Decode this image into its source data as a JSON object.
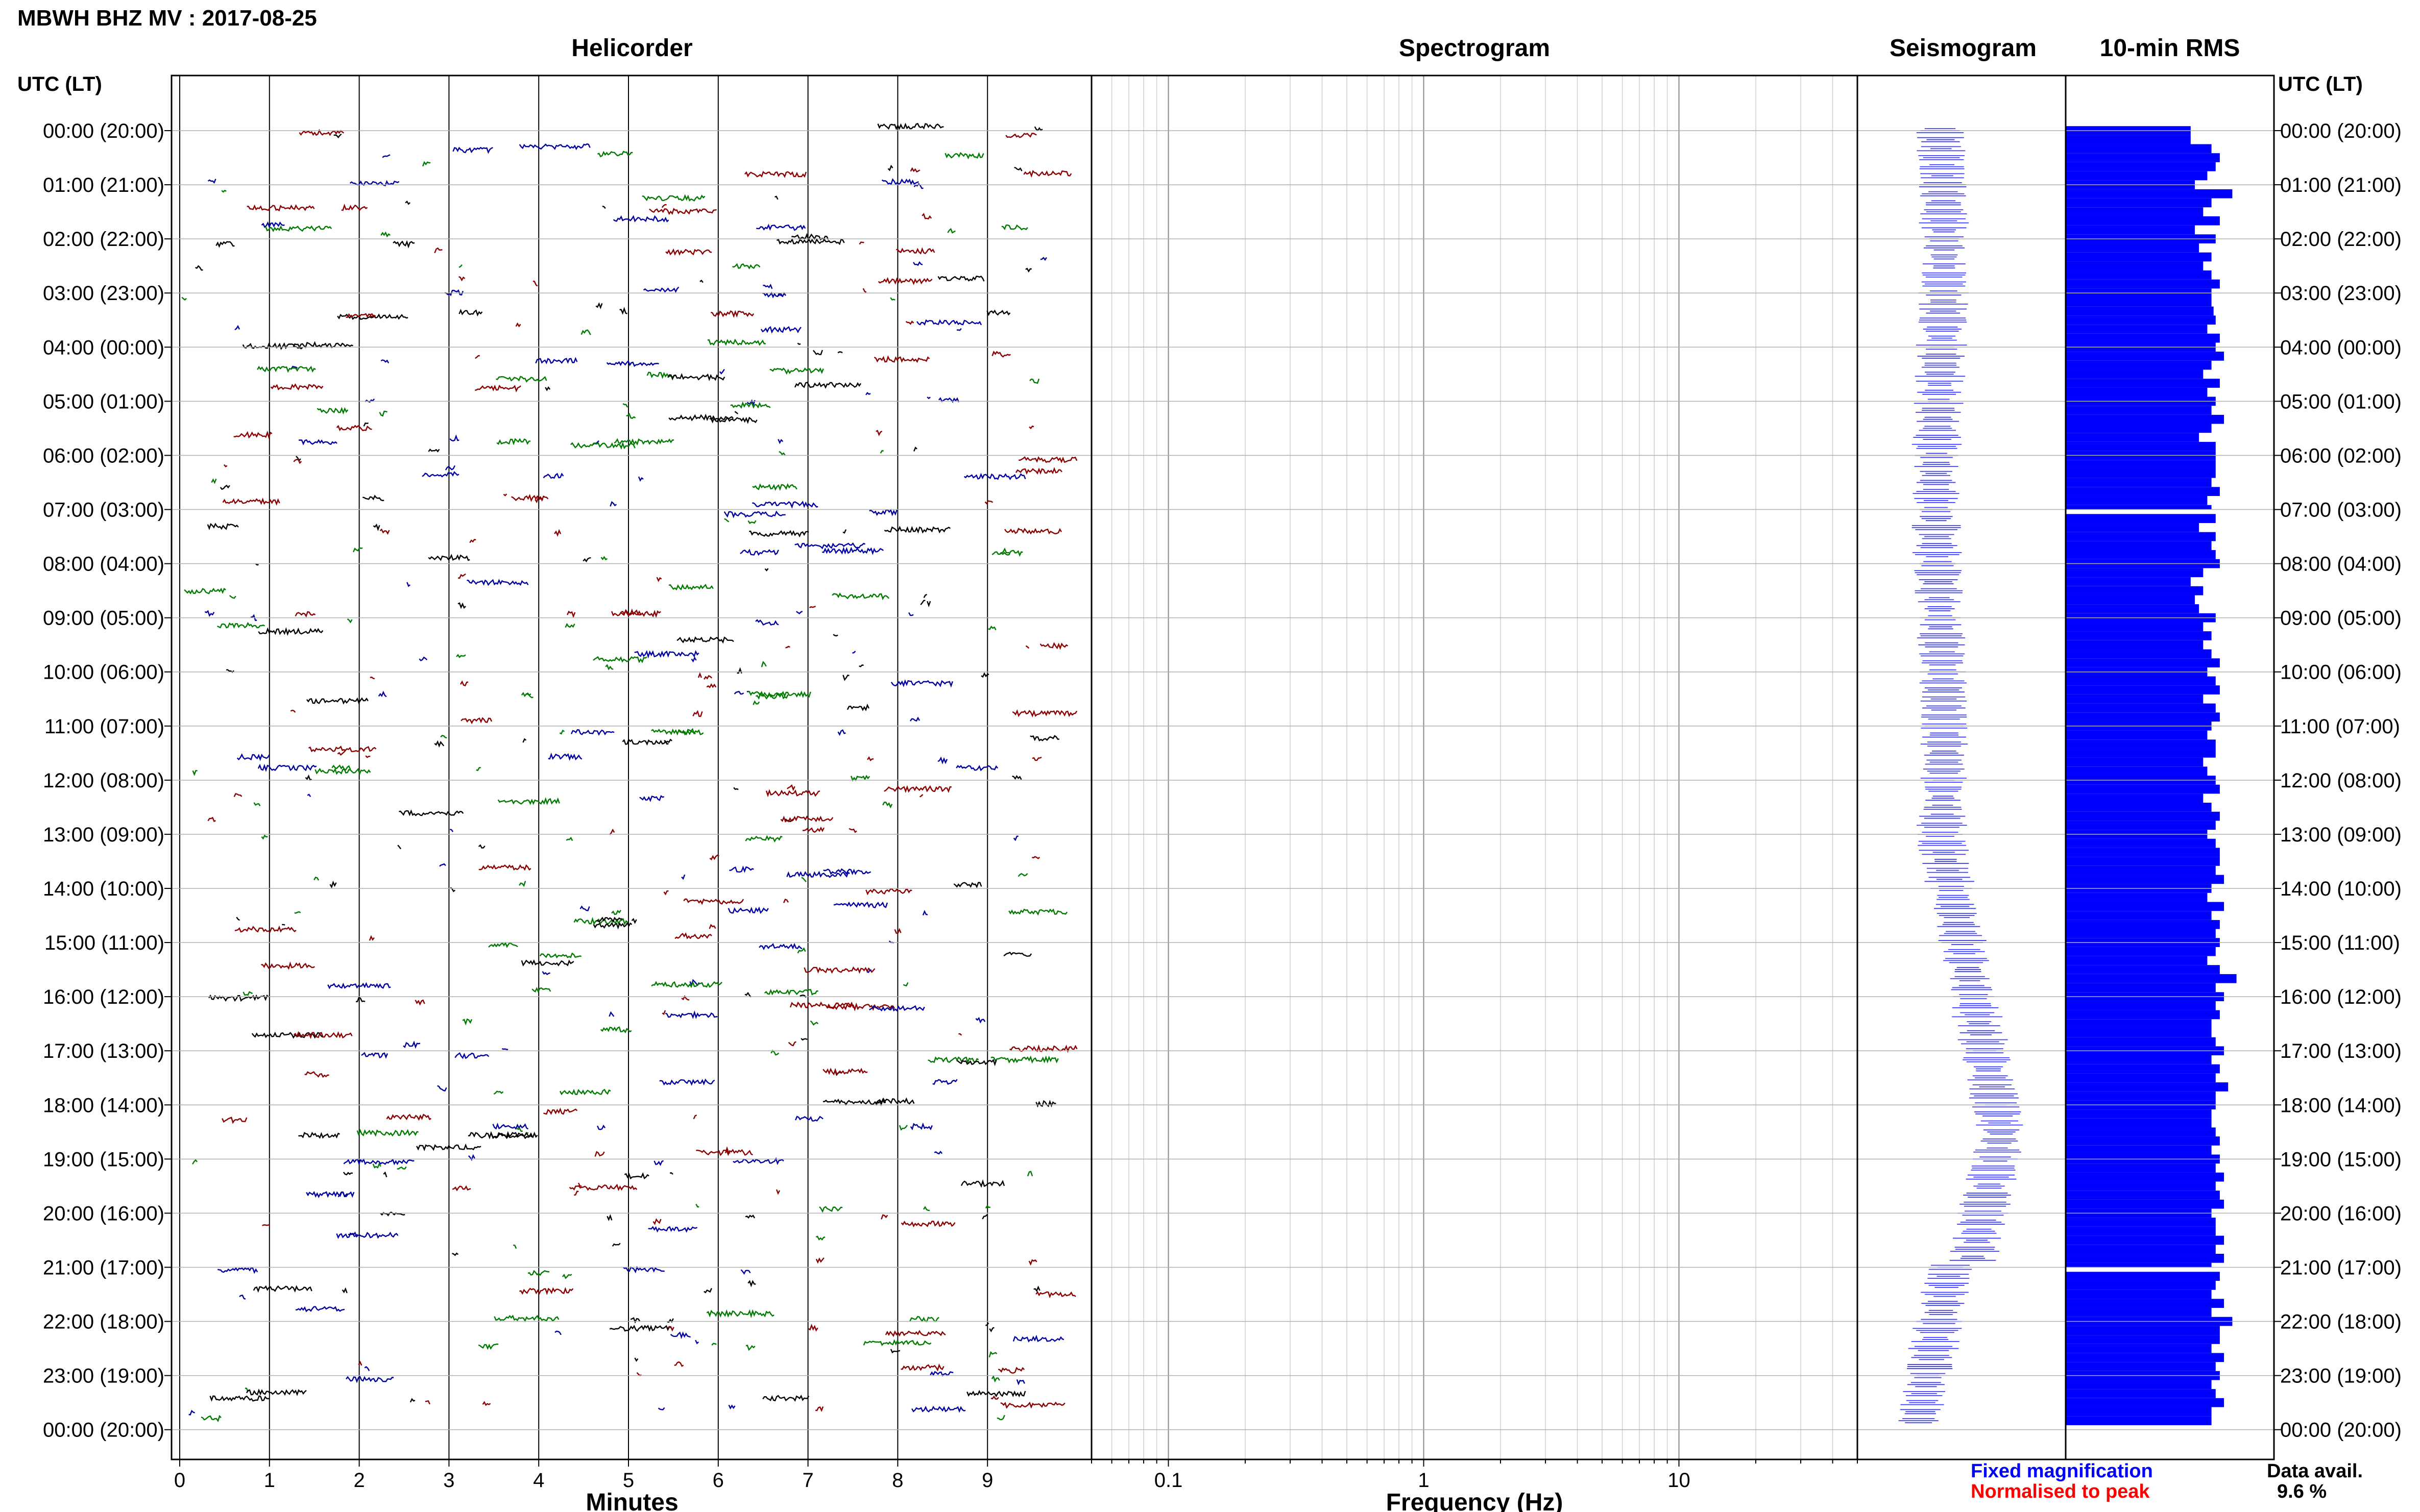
{
  "page": {
    "station_title": "MBWH BHZ MV : 2017-08-25",
    "left_header": "UTC (LT)",
    "right_header": "UTC (LT)",
    "legend_fixed": "Fixed magnification",
    "legend_normalised": "Normalised to peak",
    "data_avail_label": "Data avail.",
    "data_avail_value": "9.6 %"
  },
  "colors": {
    "helicorder_traces": [
      "#000000",
      "#8b0000",
      "#0000a0",
      "#007a00"
    ],
    "rms_bar": "#0000ff",
    "legend_fixed": "#0000ff",
    "legend_normalised": "#ff0000",
    "grid_line": "#000000",
    "row_line": "#b0b0b0"
  },
  "hour_labels": [
    "00:00 (20:00)",
    "01:00 (21:00)",
    "02:00 (22:00)",
    "03:00 (23:00)",
    "04:00 (00:00)",
    "05:00 (01:00)",
    "06:00 (02:00)",
    "07:00 (03:00)",
    "08:00 (04:00)",
    "09:00 (05:00)",
    "10:00 (06:00)",
    "11:00 (07:00)",
    "12:00 (08:00)",
    "13:00 (09:00)",
    "14:00 (10:00)",
    "15:00 (11:00)",
    "16:00 (12:00)",
    "17:00 (13:00)",
    "18:00 (14:00)",
    "19:00 (15:00)",
    "20:00 (16:00)",
    "21:00 (17:00)",
    "22:00 (18:00)",
    "23:00 (19:00)",
    "00:00 (20:00)"
  ],
  "chart_data": [
    {
      "type": "line",
      "title": "Helicorder",
      "xlabel": "Minutes",
      "x_ticks": [
        "0",
        "1",
        "2",
        "3",
        "4",
        "5",
        "6",
        "7",
        "8",
        "9"
      ],
      "xlim": [
        0,
        10
      ],
      "rows": 144,
      "row_minutes": 10
    },
    {
      "type": "heatmap",
      "title": "Spectrogram",
      "xlabel": "Frequency (Hz)",
      "x_scale": "log",
      "x_ticks": [
        "0.1",
        "1",
        "10"
      ],
      "xlim": [
        0.05,
        50
      ]
    },
    {
      "type": "line",
      "title": "Seismogram"
    },
    {
      "type": "bar",
      "title": "10-min RMS",
      "orientation": "horizontal",
      "rows": 144,
      "gaps_after_hours": [
        7,
        21
      ],
      "values": [
        0.6,
        0.6,
        0.7,
        0.74,
        0.72,
        0.68,
        0.62,
        0.8,
        0.7,
        0.66,
        0.74,
        0.62,
        0.72,
        0.64,
        0.7,
        0.66,
        0.7,
        0.74,
        0.7,
        0.7,
        0.71,
        0.72,
        0.68,
        0.74,
        0.72,
        0.76,
        0.7,
        0.66,
        0.74,
        0.68,
        0.72,
        0.7,
        0.76,
        0.7,
        0.64,
        0.72,
        0.72,
        0.72,
        0.72,
        0.7,
        0.74,
        0.68,
        0.7,
        0.72,
        0.64,
        0.72,
        0.7,
        0.72,
        0.74,
        0.66,
        0.6,
        0.66,
        0.62,
        0.64,
        0.72,
        0.66,
        0.7,
        0.66,
        0.7,
        0.74,
        0.68,
        0.72,
        0.74,
        0.66,
        0.72,
        0.74,
        0.7,
        0.68,
        0.72,
        0.72,
        0.66,
        0.68,
        0.72,
        0.74,
        0.66,
        0.7,
        0.74,
        0.72,
        0.68,
        0.72,
        0.74,
        0.74,
        0.72,
        0.76,
        0.7,
        0.68,
        0.76,
        0.7,
        0.74,
        0.72,
        0.74,
        0.72,
        0.68,
        0.74,
        0.82,
        0.72,
        0.76,
        0.72,
        0.74,
        0.7,
        0.7,
        0.72,
        0.76,
        0.7,
        0.74,
        0.72,
        0.78,
        0.72,
        0.72,
        0.7,
        0.7,
        0.72,
        0.74,
        0.7,
        0.74,
        0.72,
        0.76,
        0.72,
        0.74,
        0.76,
        0.7,
        0.72,
        0.72,
        0.76,
        0.72,
        0.76,
        0.7,
        0.74,
        0.72,
        0.7,
        0.76,
        0.7,
        0.8,
        0.74,
        0.74,
        0.7,
        0.76,
        0.72,
        0.74,
        0.7,
        0.72,
        0.76,
        0.7,
        0.7
      ],
      "value_unit": "relative"
    }
  ]
}
